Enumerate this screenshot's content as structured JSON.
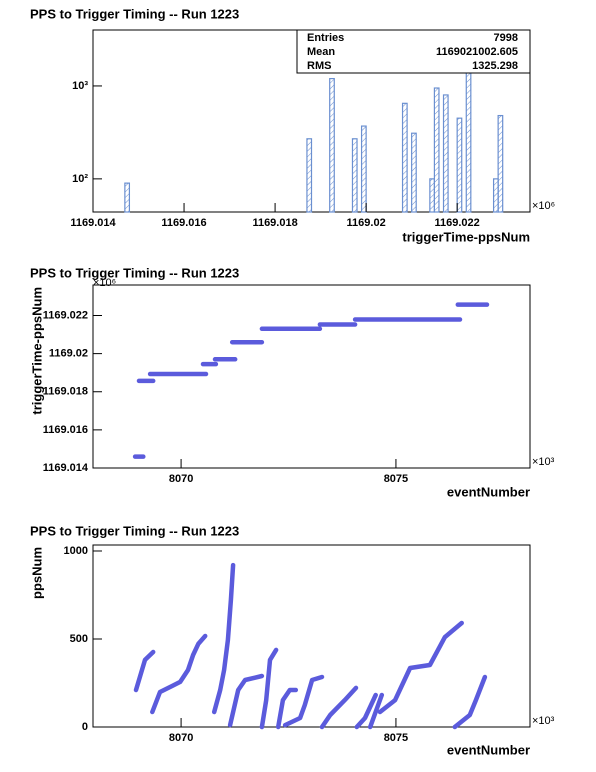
{
  "chart_data": [
    {
      "type": "histogram",
      "title": "PPS to Trigger Timing -- Run 1223",
      "x_label": "triggerTime-ppsNum",
      "x_exponent": "×10⁶",
      "color": "#6a8fd0",
      "log_y": true,
      "bins": [
        1169.014,
        1169.0141,
        1169.0142,
        1169.0143,
        1169.0144,
        1169.0145,
        1169.0146,
        1169.0147,
        1169.0148,
        1169.0149,
        1169.015,
        1169.0151,
        1169.0152,
        1169.0153,
        1169.0154,
        1169.0155,
        1169.0156,
        1169.0157,
        1169.0158,
        1169.0159,
        1169.016,
        1169.0161,
        1169.0162,
        1169.0163,
        1169.0164,
        1169.0165,
        1169.0166,
        1169.0167,
        1169.0168,
        1169.0169,
        1169.017,
        1169.0171,
        1169.0172,
        1169.0173,
        1169.0174,
        1169.0175,
        1169.0176,
        1169.0177,
        1169.0178,
        1169.0179,
        1169.018,
        1169.0181,
        1169.0182,
        1169.0183,
        1169.0184,
        1169.0185,
        1169.0186,
        1169.0187,
        1169.0188,
        1169.0189,
        1169.019,
        1169.0191,
        1169.0192,
        1169.0193,
        1169.0194,
        1169.0195,
        1169.0196,
        1169.0197,
        1169.0198,
        1169.0199,
        1169.02,
        1169.0201,
        1169.0202,
        1169.0203,
        1169.0204,
        1169.0205,
        1169.0206,
        1169.0207,
        1169.0208,
        1169.0209,
        1169.021,
        1169.0211,
        1169.0212,
        1169.0213,
        1169.0214,
        1169.0215,
        1169.0216,
        1169.0217,
        1169.0218,
        1169.0219,
        1169.022,
        1169.0221,
        1169.0222,
        1169.0223,
        1169.0224,
        1169.0225,
        1169.0226,
        1169.0227,
        1169.0228,
        1169.0229,
        1169.023,
        1169.0231,
        1169.0232,
        1169.0233,
        1169.0234,
        1169.0235,
        1169.0236
      ],
      "values": [
        0,
        0,
        0,
        0,
        0,
        0,
        0,
        90,
        0,
        0,
        0,
        0,
        0,
        0,
        0,
        0,
        0,
        0,
        0,
        0,
        0,
        0,
        0,
        0,
        0,
        0,
        0,
        0,
        0,
        0,
        0,
        0,
        0,
        0,
        0,
        0,
        0,
        0,
        0,
        0,
        0,
        0,
        0,
        0,
        0,
        0,
        0,
        270,
        0,
        0,
        0,
        0,
        1200,
        0,
        0,
        0,
        0,
        270,
        0,
        370,
        0,
        0,
        0,
        0,
        0,
        0,
        0,
        0,
        650,
        0,
        310,
        0,
        0,
        0,
        100,
        950,
        0,
        800,
        0,
        0,
        450,
        0,
        2000,
        0,
        0,
        0,
        0,
        0,
        100,
        480,
        0,
        0,
        0,
        0,
        0,
        0
      ],
      "xlim": [
        1169.014,
        1169.0236
      ],
      "xticks": [
        1169.014,
        1169.016,
        1169.018,
        1169.02,
        1169.022
      ],
      "ylim": [
        44,
        4000
      ],
      "yticks": [
        {
          "value": 100,
          "label": "10²"
        },
        {
          "value": 1000,
          "label": "10³"
        }
      ],
      "stats": [
        {
          "label": "Entries",
          "value": 7998
        },
        {
          "label": "Mean",
          "value": 1169021002.605
        },
        {
          "label": "RMS",
          "value": 1325.298
        }
      ]
    },
    {
      "type": "line",
      "title": "PPS to Trigger Timing -- Run 1223",
      "x_label": "eventNumber",
      "y_label": "triggerTime-ppsNum",
      "x_exponent": "×10³",
      "y_exponent": "×10⁶",
      "color": "#5b5bdc",
      "x": [
        8068.93,
        8069.12,
        null,
        8069.02,
        8069.35,
        null,
        8069.28,
        8070.58,
        null,
        8070.51,
        8070.81,
        null,
        8070.79,
        8071.26,
        null,
        8071.19,
        8071.88,
        null,
        8071.88,
        8073.23,
        null,
        8073.23,
        8074.05,
        null,
        8074.05,
        8076.49,
        null,
        8076.44,
        8077.12
      ],
      "y": [
        1169.0146,
        1169.0146,
        null,
        1169.01857,
        1169.01857,
        null,
        1169.01893,
        1169.01893,
        null,
        1169.01945,
        1169.01945,
        null,
        1169.0197,
        1169.0197,
        null,
        1169.0206,
        1169.0206,
        null,
        1169.0213,
        1169.0213,
        null,
        1169.02153,
        1169.02153,
        null,
        1169.02179,
        1169.02179,
        null,
        1169.02257,
        1169.02257
      ],
      "xlim": [
        8067.95,
        8078.12
      ],
      "xticks": [
        8070,
        8075
      ],
      "ylim": [
        1169.014,
        1169.0236
      ],
      "yticks": [
        1169.014,
        1169.016,
        1169.018,
        1169.02,
        1169.022
      ]
    },
    {
      "type": "line",
      "title": "PPS to Trigger Timing -- Run 1223",
      "x_label": "eventNumber",
      "y_label": "ppsNum",
      "x_exponent": "×10³",
      "color": "#5b5bdc",
      "x": [
        8068.95,
        8069.16,
        8069.35,
        null,
        8069.33,
        8069.51,
        8069.79,
        8069.98,
        8070.16,
        8070.28,
        8070.4,
        8070.56,
        null,
        8070.77,
        8070.91,
        8071.0,
        8071.09,
        8071.16,
        8071.21,
        null,
        8071.14,
        8071.33,
        8071.49,
        8071.88,
        null,
        8071.88,
        8071.98,
        8072.07,
        8072.21,
        null,
        8072.26,
        8072.37,
        8072.53,
        8072.67,
        null,
        8072.42,
        8072.77,
        8072.88,
        8073.05,
        8073.28,
        null,
        8073.28,
        8073.47,
        8073.81,
        8074.07,
        null,
        8074.09,
        8074.28,
        8074.53,
        null,
        8074.4,
        8074.67,
        null,
        8074.63,
        8074.98,
        8075.09,
        8075.33,
        8075.79,
        8075.98,
        8076.14,
        8076.53,
        null,
        8076.37,
        8076.72,
        8076.86,
        8077.07
      ],
      "y": [
        210,
        381,
        426,
        null,
        85,
        199,
        233,
        256,
        324,
        409,
        472,
        517,
        null,
        85,
        210,
        324,
        494,
        722,
        920,
        null,
        11,
        210,
        267,
        290,
        null,
        0,
        153,
        381,
        438,
        null,
        0,
        153,
        210,
        210,
        null,
        11,
        51,
        125,
        267,
        284,
        null,
        0,
        68,
        153,
        222,
        null,
        0,
        51,
        182,
        null,
        0,
        182,
        null,
        85,
        153,
        210,
        335,
        352,
        438,
        511,
        591,
        null,
        0,
        68,
        153,
        284
      ],
      "xlim": [
        8067.95,
        8078.12
      ],
      "xticks": [
        8070,
        8075
      ],
      "ylim": [
        0,
        1034
      ],
      "yticks": [
        0,
        500,
        1000
      ]
    }
  ]
}
